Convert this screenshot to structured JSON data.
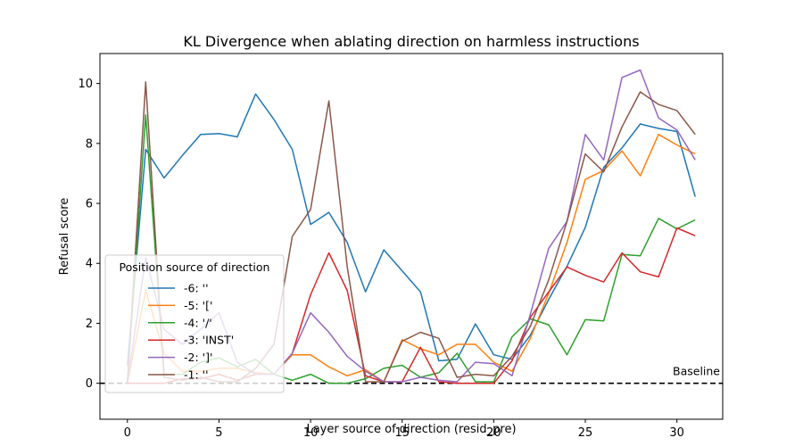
{
  "chart_data": {
    "type": "line",
    "title": "KL Divergence when ablating direction on harmless instructions",
    "xlabel": "Layer source of direction (resid_pre)",
    "ylabel": "Refusal score",
    "xlim": [
      -1.5,
      32.5
    ],
    "ylim": [
      -1.2,
      11.0
    ],
    "x_ticks": [
      0,
      5,
      10,
      15,
      20,
      25,
      30
    ],
    "y_ticks": [
      0,
      2,
      4,
      6,
      8,
      10
    ],
    "grid": false,
    "legend_title": "Position source of direction",
    "legend_position": "lower-left",
    "x": [
      0,
      1,
      2,
      3,
      4,
      5,
      6,
      7,
      8,
      9,
      10,
      11,
      12,
      13,
      14,
      15,
      16,
      17,
      18,
      19,
      20,
      21,
      22,
      23,
      24,
      25,
      26,
      27,
      28,
      29,
      30,
      31
    ],
    "series": [
      {
        "name": "-6: ''",
        "color": "#1f77b4",
        "values": [
          0.6,
          7.8,
          6.85,
          7.6,
          8.3,
          8.33,
          8.22,
          9.65,
          8.8,
          7.8,
          5.3,
          5.7,
          4.7,
          3.05,
          4.45,
          3.75,
          3.05,
          0.75,
          0.8,
          1.98,
          0.95,
          0.8,
          1.6,
          2.8,
          3.9,
          5.2,
          7.2,
          7.85,
          8.65,
          8.5,
          8.4,
          6.22
        ]
      },
      {
        "name": "-5: '['",
        "color": "#ff7f0e",
        "values": [
          0.0,
          3.1,
          1.0,
          0.4,
          0.4,
          0.5,
          0.5,
          0.35,
          0.3,
          0.95,
          0.95,
          0.55,
          0.25,
          0.45,
          0.05,
          1.45,
          1.15,
          0.95,
          1.3,
          1.3,
          0.7,
          0.4,
          1.5,
          3.0,
          4.7,
          6.8,
          7.1,
          7.75,
          6.92,
          8.3,
          7.95,
          7.65
        ]
      },
      {
        "name": "-4: '/'",
        "color": "#2ca02c",
        "values": [
          0.05,
          8.95,
          0.3,
          0.3,
          0.7,
          0.85,
          0.55,
          0.8,
          0.3,
          0.1,
          0.3,
          0.0,
          0.0,
          0.15,
          0.5,
          0.6,
          0.2,
          0.35,
          1.0,
          0.05,
          0.05,
          1.55,
          2.15,
          1.95,
          0.95,
          2.12,
          2.08,
          4.3,
          4.25,
          5.5,
          5.15,
          5.45
        ]
      },
      {
        "name": "-3: 'INST'",
        "color": "#d62728",
        "values": [
          0.0,
          0.0,
          0.0,
          0.15,
          0.15,
          0.3,
          0.1,
          0.3,
          0.3,
          1.0,
          2.95,
          4.35,
          3.1,
          0.25,
          0.05,
          0.05,
          1.2,
          0.05,
          0.0,
          0.0,
          0.0,
          0.75,
          2.2,
          3.05,
          3.88,
          3.6,
          3.38,
          4.35,
          3.72,
          3.55,
          5.18,
          4.92
        ]
      },
      {
        "name": "-2: ']'",
        "color": "#9467bd",
        "values": [
          0.0,
          4.2,
          1.8,
          1.3,
          1.8,
          2.35,
          0.7,
          0.3,
          0.3,
          1.0,
          2.35,
          1.7,
          0.9,
          0.4,
          0.05,
          0.05,
          0.2,
          0.1,
          0.05,
          0.7,
          0.65,
          0.25,
          2.3,
          4.5,
          5.4,
          8.3,
          7.45,
          10.2,
          10.45,
          8.85,
          8.45,
          7.45
        ]
      },
      {
        "name": "-1: ''",
        "color": "#8c564b",
        "values": [
          0.0,
          10.05,
          0.2,
          0.1,
          0.2,
          0.05,
          0.05,
          0.5,
          1.3,
          4.9,
          5.8,
          9.42,
          3.9,
          0.05,
          0.05,
          1.4,
          1.7,
          1.5,
          0.2,
          0.3,
          0.25,
          0.9,
          1.9,
          3.45,
          5.4,
          7.65,
          7.05,
          8.55,
          9.72,
          9.3,
          9.1,
          8.3
        ]
      }
    ],
    "baseline": {
      "label": "Baseline",
      "value": 0.0,
      "color": "#000000"
    }
  }
}
